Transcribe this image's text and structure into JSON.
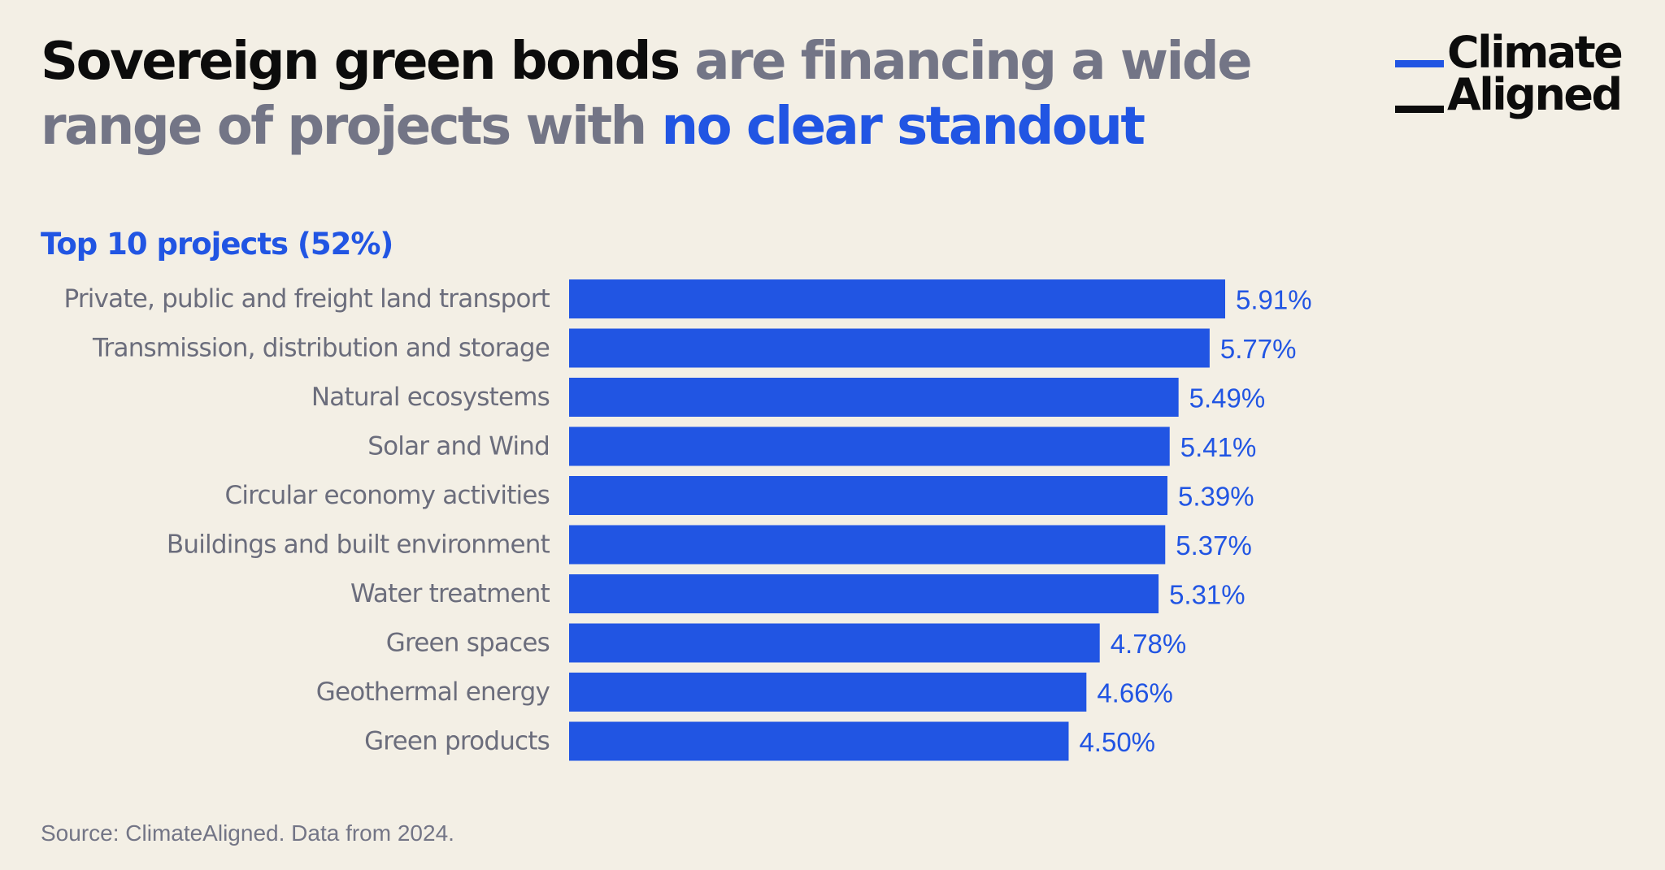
{
  "headline": {
    "part1": "Sovereign green bonds",
    "part2": " are financing a wide range of projects with ",
    "part3": "no clear standout"
  },
  "logo": {
    "line1": "Climate",
    "line2": "Aligned",
    "accent_color": "#2155e3"
  },
  "chart_data": {
    "type": "bar",
    "orientation": "horizontal",
    "title": "Top 10 projects (52%)",
    "categories": [
      "Private, public and freight land transport",
      "Transmission, distribution and storage",
      "Natural ecosystems",
      "Solar and Wind",
      "Circular economy activities",
      "Buildings and built environment",
      "Water treatment",
      "Green spaces",
      "Geothermal energy",
      "Green products"
    ],
    "values": [
      5.91,
      5.77,
      5.49,
      5.41,
      5.39,
      5.37,
      5.31,
      4.78,
      4.66,
      4.5
    ],
    "value_labels": [
      "5.91%",
      "5.77%",
      "5.49%",
      "5.41%",
      "5.39%",
      "5.37%",
      "5.31%",
      "4.78%",
      "4.66%",
      "4.50%"
    ],
    "xlim": [
      0,
      5.91
    ],
    "bar_color": "#2155e3",
    "grid": false,
    "legend": "none"
  },
  "source": "Source: ClimateAligned. Data from 2024.",
  "colors": {
    "background": "#f3efe5",
    "accent": "#2155e3",
    "dark": "#0c0c0c",
    "grey": "#737586"
  }
}
